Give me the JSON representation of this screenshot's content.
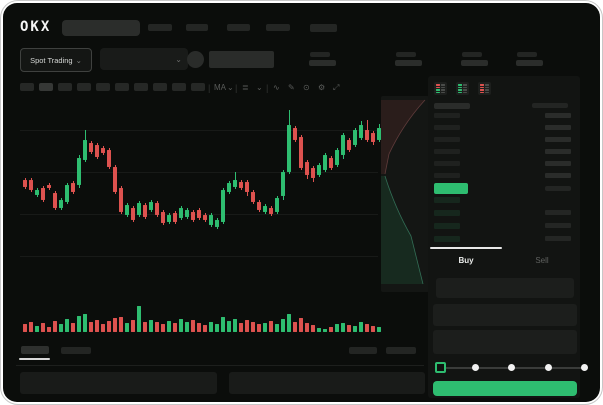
{
  "app": {
    "logo_text": "OKX"
  },
  "colors": {
    "up_green": "#2ebd70",
    "down_red": "#dd524f",
    "accent_button_green": "#2ebd70",
    "window_bg": "#0b0d0b"
  },
  "header": {
    "nav_placeholder_count": 5,
    "search_placeholder": ""
  },
  "subheader": {
    "market_selector_label": "Spot Trading",
    "market_selector_chevron": "⌄",
    "pair_dropdown_chevron": "⌄",
    "stat_placeholder_count": 4
  },
  "chart_toolbar": {
    "interval_button_count": 10,
    "icons": [
      {
        "name": "divider",
        "glyph": "|"
      },
      {
        "name": "ma-indicator",
        "glyph": "MA"
      },
      {
        "name": "chevron-down",
        "glyph": "⌄"
      },
      {
        "name": "divider",
        "glyph": "|"
      },
      {
        "name": "chart-style",
        "glyph": "≣"
      },
      {
        "name": "chevron-down",
        "glyph": "⌄"
      },
      {
        "name": "divider",
        "glyph": "|"
      },
      {
        "name": "line-tool",
        "glyph": "∿"
      },
      {
        "name": "draw-tool",
        "glyph": "✎"
      },
      {
        "name": "camera",
        "glyph": "⊙"
      },
      {
        "name": "settings",
        "glyph": "⚙"
      },
      {
        "name": "fullscreen",
        "glyph": "⤢"
      }
    ]
  },
  "chart_data": {
    "type": "candlestick",
    "title": "",
    "xlabel": "",
    "ylabel": "",
    "axes_labeled": false,
    "value_units": "arbitrary (no visible axis labels in mock)",
    "ohlc_order": [
      "open",
      "high",
      "low",
      "close"
    ],
    "candles": [
      [
        120,
        122,
        111,
        113
      ],
      [
        120,
        122,
        108,
        110
      ],
      [
        105,
        112,
        103,
        110
      ],
      [
        112,
        114,
        98,
        100
      ],
      [
        115,
        117,
        110,
        112
      ],
      [
        107,
        109,
        90,
        92
      ],
      [
        92,
        102,
        90,
        100
      ],
      [
        98,
        117,
        96,
        115
      ],
      [
        117,
        119,
        106,
        108
      ],
      [
        115,
        145,
        112,
        142
      ],
      [
        140,
        170,
        138,
        160
      ],
      [
        157,
        159,
        146,
        148
      ],
      [
        155,
        157,
        141,
        143
      ],
      [
        152,
        154,
        145,
        147
      ],
      [
        150,
        152,
        131,
        133
      ],
      [
        133,
        135,
        106,
        108
      ],
      [
        112,
        114,
        86,
        88
      ],
      [
        85,
        97,
        83,
        95
      ],
      [
        92,
        94,
        78,
        80
      ],
      [
        85,
        99,
        83,
        97
      ],
      [
        95,
        97,
        81,
        83
      ],
      [
        90,
        100,
        88,
        98
      ],
      [
        97,
        99,
        83,
        85
      ],
      [
        88,
        90,
        75,
        77
      ],
      [
        78,
        87,
        76,
        85
      ],
      [
        87,
        89,
        76,
        78
      ],
      [
        82,
        94,
        80,
        92
      ],
      [
        83,
        92,
        81,
        90
      ],
      [
        88,
        90,
        78,
        80
      ],
      [
        90,
        92,
        80,
        82
      ],
      [
        85,
        87,
        78,
        80
      ],
      [
        75,
        87,
        73,
        85
      ],
      [
        73,
        82,
        71,
        80
      ],
      [
        78,
        112,
        76,
        110
      ],
      [
        108,
        119,
        106,
        117
      ],
      [
        113,
        128,
        111,
        120
      ],
      [
        118,
        120,
        110,
        112
      ],
      [
        118,
        120,
        104,
        108
      ],
      [
        108,
        110,
        96,
        98
      ],
      [
        98,
        100,
        88,
        90
      ],
      [
        88,
        96,
        86,
        94
      ],
      [
        92,
        94,
        84,
        86
      ],
      [
        88,
        104,
        86,
        102
      ],
      [
        104,
        130,
        100,
        128
      ],
      [
        128,
        190,
        126,
        175
      ],
      [
        172,
        174,
        158,
        160
      ],
      [
        163,
        165,
        130,
        132
      ],
      [
        138,
        140,
        121,
        125
      ],
      [
        132,
        134,
        118,
        122
      ],
      [
        125,
        137,
        123,
        135
      ],
      [
        130,
        147,
        128,
        145
      ],
      [
        142,
        144,
        130,
        132
      ],
      [
        135,
        152,
        133,
        150
      ],
      [
        145,
        167,
        141,
        165
      ],
      [
        160,
        162,
        148,
        150
      ],
      [
        155,
        172,
        153,
        170
      ],
      [
        162,
        179,
        160,
        175
      ],
      [
        170,
        180,
        158,
        160
      ],
      [
        167,
        169,
        155,
        158
      ],
      [
        160,
        176,
        158,
        172
      ]
    ],
    "volumes": [
      8,
      10,
      6,
      9,
      5,
      11,
      8,
      13,
      9,
      16,
      18,
      10,
      12,
      8,
      11,
      14,
      15,
      9,
      12,
      26,
      10,
      12,
      10,
      8,
      11,
      9,
      13,
      10,
      12,
      9,
      7,
      10,
      8,
      15,
      11,
      13,
      9,
      12,
      10,
      8,
      9,
      11,
      8,
      13,
      18,
      10,
      14,
      9,
      7,
      4,
      3,
      5,
      8,
      9,
      7,
      6,
      10,
      8,
      6,
      5
    ],
    "legend": [],
    "grid": true
  },
  "depth_preview": {
    "ask_side_color": "#7a4a4a",
    "bid_side_color": "#3f8f6f"
  },
  "order_book": {
    "view_modes": [
      "combined-book",
      "bids-only",
      "asks-only"
    ],
    "ask_row_count": 6,
    "bid_row_count": 4,
    "last_price_highlight_color": "#2ebd70"
  },
  "trade_panel": {
    "buy_tab_label": "Buy",
    "sell_tab_label": "Sell",
    "active_tab": "Buy",
    "field_count": 3,
    "slider_steps": 5,
    "slider_position_index": 0,
    "submit_button_label": ""
  },
  "bottom_section": {
    "tab_placeholder_count": 2,
    "right_placeholder_count": 2,
    "panel_count": 2
  }
}
